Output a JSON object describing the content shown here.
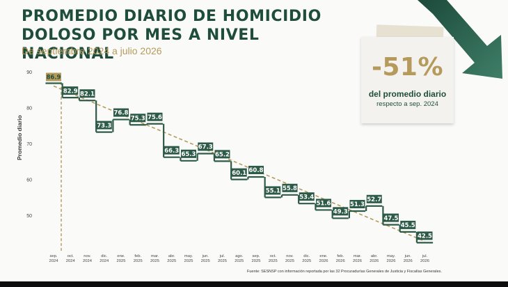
{
  "header": {
    "title": "PROMEDIO DIARIO DE HOMICIDIO DOLOSO POR MES A NIVEL NACIONAL",
    "subtitle": "De septiembre 2024 a julio 2026"
  },
  "callout": {
    "percent": "-51%",
    "line1": "del promedio diario",
    "line2": "respecto a sep. 2024"
  },
  "source": "Fuente: SESNSP con información reportada por las 32 Procuradurías Generales de Justicia y Fiscalías Generales.",
  "colors": {
    "bar": "#2e5b48",
    "label_bg": "#2e5b48",
    "trend": "#b59a5b",
    "title": "#1f4d3c",
    "accent_arrow": "#2e5b48"
  },
  "chart_data": {
    "type": "line",
    "style": "step",
    "title": "PROMEDIO DIARIO DE HOMICIDIO DOLOSO POR MES A NIVEL NACIONAL",
    "ylabel": "Promedio diario",
    "ylim": [
      40,
      90
    ],
    "yticks": [
      50,
      60,
      70,
      80,
      90
    ],
    "grid": false,
    "categories": [
      {
        "month": "sep.",
        "year": "2024"
      },
      {
        "month": "oct.",
        "year": "2024"
      },
      {
        "month": "nov.",
        "year": "2024"
      },
      {
        "month": "dic.",
        "year": "2024"
      },
      {
        "month": "ene.",
        "year": "2025"
      },
      {
        "month": "feb.",
        "year": "2025"
      },
      {
        "month": "mar.",
        "year": "2025"
      },
      {
        "month": "abr.",
        "year": "2025"
      },
      {
        "month": "may.",
        "year": "2025"
      },
      {
        "month": "jun.",
        "year": "2025"
      },
      {
        "month": "jul.",
        "year": "2025"
      },
      {
        "month": "ago.",
        "year": "2025"
      },
      {
        "month": "sep.",
        "year": "2025"
      },
      {
        "month": "oct.",
        "year": "2025"
      },
      {
        "month": "nov.",
        "year": "2025"
      },
      {
        "month": "dic.",
        "year": "2025"
      },
      {
        "month": "ene.",
        "year": "2026"
      },
      {
        "month": "feb.",
        "year": "2026"
      },
      {
        "month": "mar.",
        "year": "2026"
      },
      {
        "month": "abr.",
        "year": "2026"
      },
      {
        "month": "may.",
        "year": "2026"
      },
      {
        "month": "jun.",
        "year": "2026"
      },
      {
        "month": "jul.",
        "year": "2026"
      }
    ],
    "values": [
      86.9,
      82.9,
      82.1,
      73.3,
      76.8,
      75.3,
      75.6,
      66.3,
      65.3,
      67.3,
      65.2,
      60.1,
      60.8,
      55.1,
      55.8,
      53.4,
      51.6,
      49.3,
      51.3,
      52.7,
      47.5,
      45.5,
      42.5
    ],
    "labels": [
      "86.9",
      "82.9",
      "82.1",
      "73.3",
      "76.8",
      "75.3",
      "75.6",
      "66.3",
      "65.3",
      "67.3",
      "65.2",
      "60.1",
      "60.8",
      "55.1",
      "55.8",
      "53.4",
      "51.6",
      "49.3",
      "51.3",
      "52.7",
      "47.5",
      "45.5",
      "42.5"
    ],
    "trend": {
      "from": 86.9,
      "to": 42.5
    }
  }
}
